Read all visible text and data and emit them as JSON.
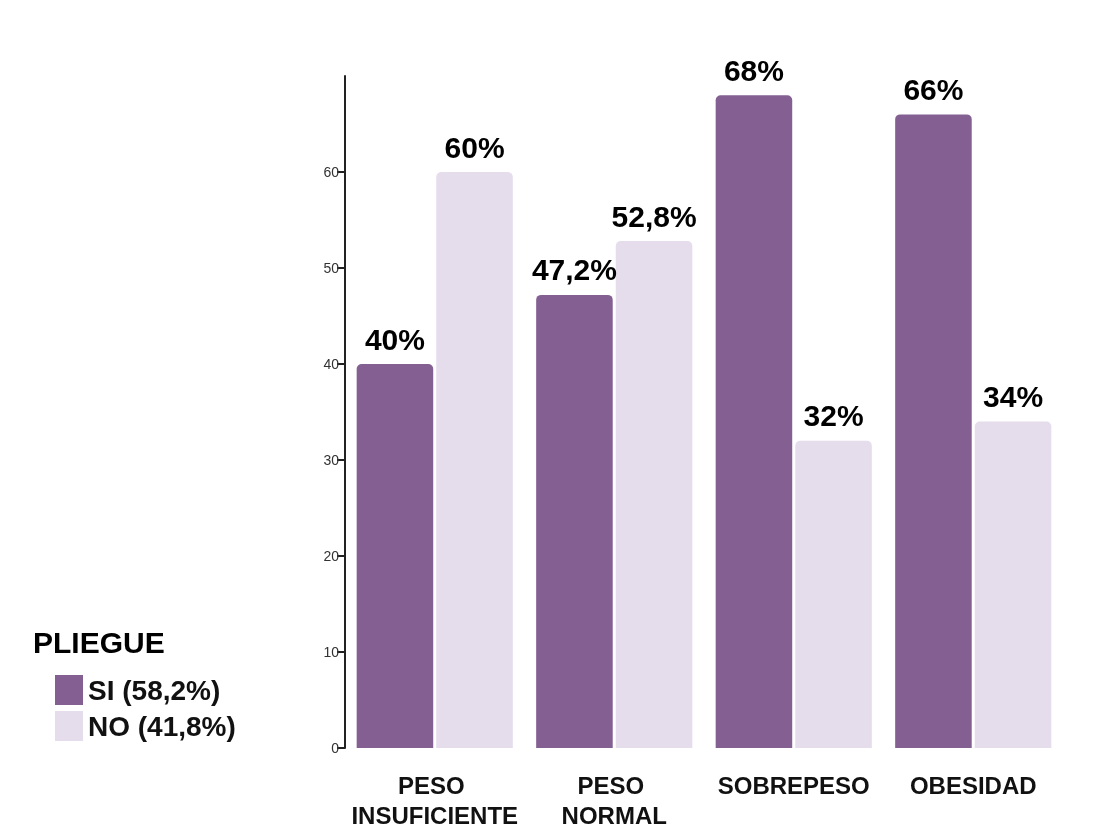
{
  "chart_data": {
    "type": "bar",
    "categories": [
      "PESO INSUFICIENTE",
      "PESO NORMAL",
      "SOBREPESO",
      "OBESIDAD"
    ],
    "legend_title": "PLIEGUE",
    "series": [
      {
        "name": "SI (58,2%)",
        "color": "#835f92",
        "values": [
          40,
          47.2,
          68,
          66
        ],
        "value_labels": [
          "40%",
          "47,2%",
          "68%",
          "66%"
        ]
      },
      {
        "name": "NO (41,8%)",
        "color": "#e5dcec",
        "values": [
          60,
          52.8,
          32,
          34
        ],
        "value_labels": [
          "60%",
          "52,8%",
          "32%",
          "34%"
        ]
      }
    ],
    "ylim": [
      0,
      70
    ],
    "yticks": [
      0,
      10,
      20,
      30,
      40,
      50,
      60
    ],
    "legend": "bottom left"
  }
}
